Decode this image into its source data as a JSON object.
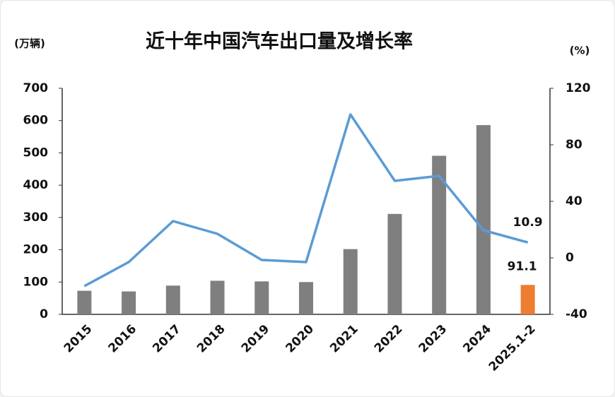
{
  "chart_data": {
    "type": "bar-line",
    "title": "近十年中国汽车出口量及增长率",
    "y_label": "(万辆)",
    "y2_label": "(%)",
    "categories": [
      "2015",
      "2016",
      "2017",
      "2018",
      "2019",
      "2020",
      "2021",
      "2022",
      "2023",
      "2024",
      "2025.1-2"
    ],
    "series": [
      {
        "name": "出口量",
        "type": "bar",
        "colors": [
          "#7f7f7f",
          "#7f7f7f",
          "#7f7f7f",
          "#7f7f7f",
          "#7f7f7f",
          "#7f7f7f",
          "#7f7f7f",
          "#7f7f7f",
          "#7f7f7f",
          "#7f7f7f",
          "#ed7d31"
        ],
        "values": [
          73,
          71,
          89,
          104,
          102,
          100,
          202,
          311,
          491,
          586,
          91.1
        ]
      },
      {
        "name": "增长率",
        "type": "line",
        "axis": "y2",
        "color": "#5b9bd5",
        "values": [
          -20,
          -3,
          26,
          17,
          -1.5,
          -3,
          101.5,
          54.5,
          58,
          19.5,
          10.9
        ]
      }
    ],
    "ylim": [
      0,
      700
    ],
    "yticks": [
      0,
      100,
      200,
      300,
      400,
      500,
      600,
      700
    ],
    "y2lim": [
      -40,
      120
    ],
    "y2ticks": [
      -40,
      0,
      40,
      80,
      120
    ]
  }
}
